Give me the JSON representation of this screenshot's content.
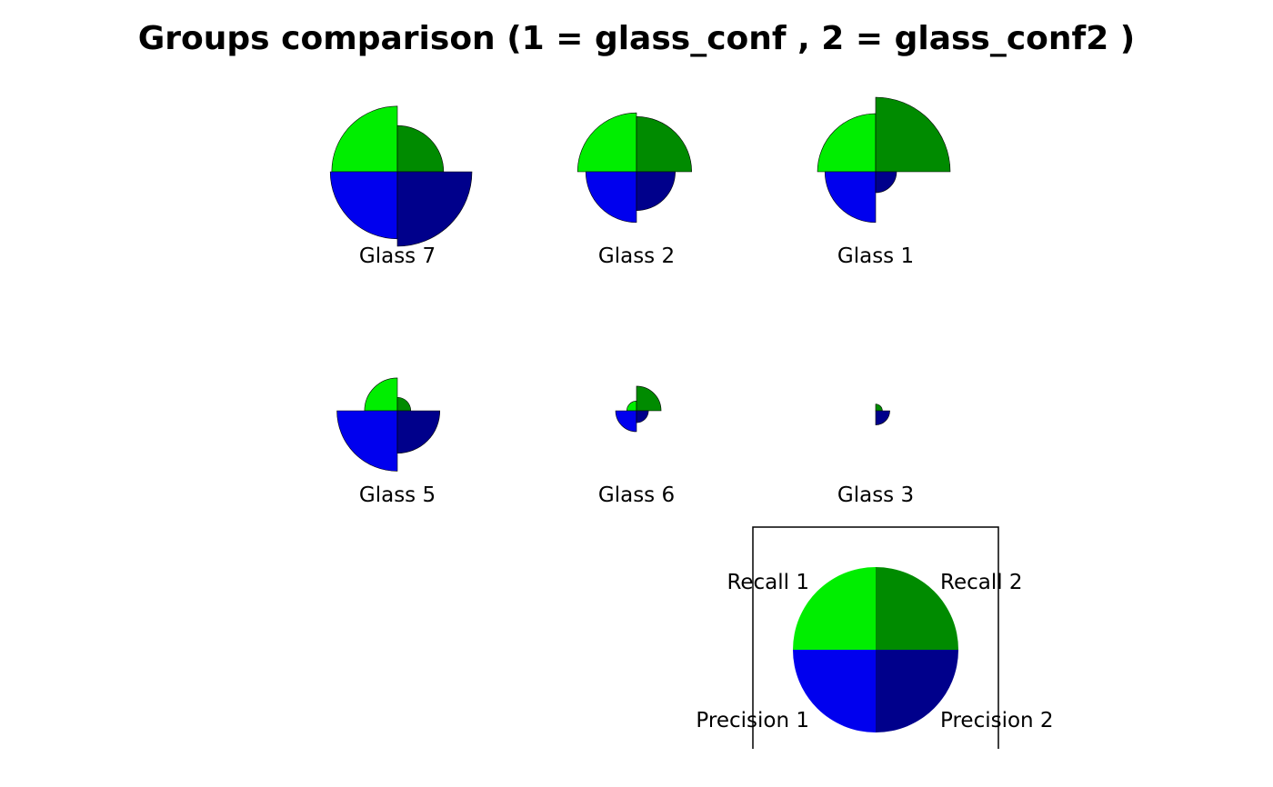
{
  "chart_data": {
    "type": "pie",
    "title": "Groups comparison (1 = glass_conf , 2 = glass_conf2 )",
    "colors": {
      "recall_1": "#00EE00",
      "recall_2": "#008B00",
      "precision_1": "#0000EE",
      "precision_2": "#00008B"
    },
    "groups": [
      {
        "name": "Glass 7",
        "recall_1": 0.88,
        "recall_2": 0.62,
        "precision_1": 0.9,
        "precision_2": 1.0
      },
      {
        "name": "Glass 2",
        "recall_1": 0.79,
        "recall_2": 0.74,
        "precision_1": 0.68,
        "precision_2": 0.52
      },
      {
        "name": "Glass 1",
        "recall_1": 0.78,
        "recall_2": 1.0,
        "precision_1": 0.68,
        "precision_2": 0.28
      },
      {
        "name": "Glass 5",
        "recall_1": 0.44,
        "recall_2": 0.18,
        "precision_1": 0.81,
        "precision_2": 0.57
      },
      {
        "name": "Glass 6",
        "recall_1": 0.13,
        "recall_2": 0.33,
        "precision_1": 0.28,
        "precision_2": 0.16
      },
      {
        "name": "Glass 3",
        "recall_1": 0.0,
        "recall_2": 0.09,
        "precision_1": 0.0,
        "precision_2": 0.19
      }
    ],
    "legend": {
      "recall_1": "Recall 1",
      "recall_2": "Recall 2",
      "precision_1": "Precision 1",
      "precision_2": "Precision 2",
      "placement": "bottom-right"
    }
  }
}
